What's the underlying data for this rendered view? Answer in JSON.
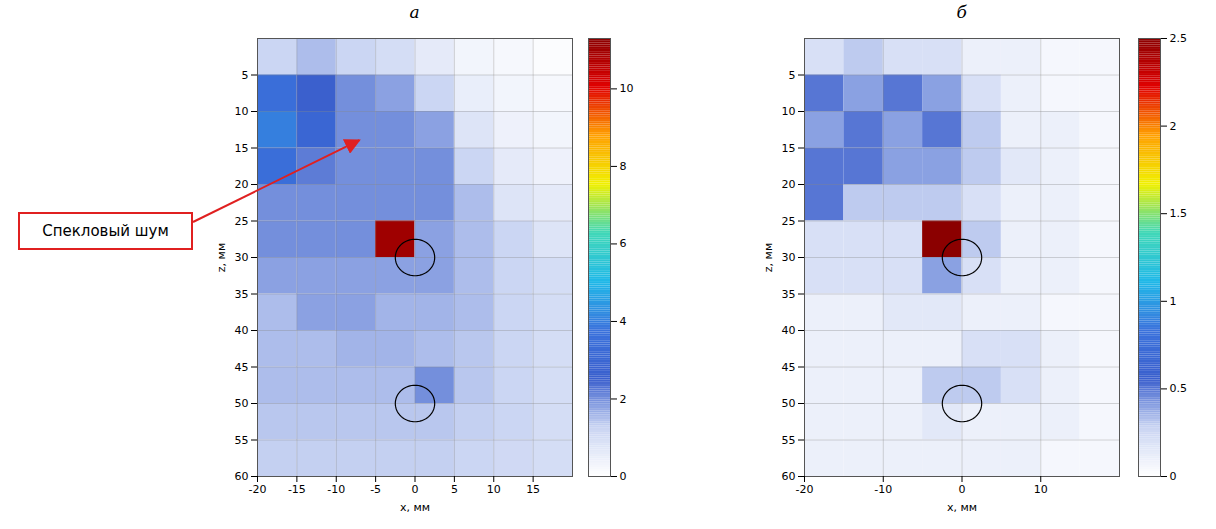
{
  "chart_data": [
    {
      "type": "heatmap",
      "title": "а",
      "xlabel": "x, мм",
      "ylabel": "z, мм",
      "xlim": [
        -20,
        20
      ],
      "ylim": [
        60,
        0
      ],
      "xticks": [
        -20,
        -15,
        -10,
        -5,
        0,
        5,
        10,
        15
      ],
      "yticks": [
        5,
        10,
        15,
        20,
        25,
        30,
        35,
        40,
        45,
        50,
        55,
        60
      ],
      "grid": true,
      "x_bins": [
        -20,
        -15,
        -10,
        -5,
        0,
        5,
        10,
        15,
        20
      ],
      "z_bins": [
        0,
        5,
        10,
        15,
        20,
        25,
        30,
        35,
        40,
        45,
        50,
        55,
        60
      ],
      "values": [
        [
          1.2,
          1.5,
          1.2,
          1.0,
          0.6,
          0.3,
          0.2,
          0.1
        ],
        [
          3.5,
          2.5,
          2.0,
          1.8,
          1.2,
          0.5,
          0.3,
          0.2
        ],
        [
          4.0,
          3.0,
          2.0,
          2.0,
          1.8,
          0.8,
          0.4,
          0.3
        ],
        [
          3.5,
          2.2,
          2.0,
          2.0,
          2.0,
          1.2,
          0.6,
          0.4
        ],
        [
          2.0,
          2.0,
          2.0,
          2.0,
          2.0,
          1.5,
          0.8,
          0.6
        ],
        [
          2.0,
          2.0,
          2.0,
          11.0,
          1.8,
          1.5,
          1.2,
          0.8
        ],
        [
          1.8,
          1.8,
          1.8,
          1.8,
          1.8,
          1.5,
          1.2,
          1.0
        ],
        [
          1.5,
          1.8,
          1.8,
          1.6,
          1.6,
          1.5,
          1.2,
          1.0
        ],
        [
          1.5,
          1.5,
          1.6,
          1.6,
          1.5,
          1.4,
          1.2,
          1.0
        ],
        [
          1.5,
          1.5,
          1.5,
          1.5,
          2.0,
          1.4,
          1.2,
          1.0
        ],
        [
          1.4,
          1.4,
          1.4,
          1.4,
          1.4,
          1.3,
          1.2,
          1.0
        ],
        [
          1.3,
          1.3,
          1.3,
          1.3,
          1.3,
          1.2,
          1.1,
          1.0
        ]
      ],
      "colorbar": {
        "range": [
          0,
          11.3
        ],
        "ticks": [
          0,
          2,
          4,
          6,
          8,
          10
        ]
      },
      "circles": [
        {
          "x": 0,
          "z": 30,
          "r": 2.5
        },
        {
          "x": 0,
          "z": 50,
          "r": 2.5
        }
      ],
      "annotations": [
        {
          "text": "Спекловый шум",
          "x": -7,
          "z": 14
        }
      ]
    },
    {
      "type": "heatmap",
      "title": "б",
      "xlabel": "x, мм",
      "ylabel": "z, мм",
      "xlim": [
        -20,
        20
      ],
      "ylim": [
        60,
        0
      ],
      "xticks": [
        -20,
        -10,
        0,
        10
      ],
      "yticks": [
        5,
        10,
        15,
        20,
        25,
        30,
        35,
        40,
        45,
        50,
        55,
        60
      ],
      "grid": true,
      "x_bins": [
        -20,
        -15,
        -10,
        -5,
        0,
        5,
        10,
        15,
        20
      ],
      "z_bins": [
        0,
        5,
        10,
        15,
        20,
        25,
        30,
        35,
        40,
        45,
        50,
        55,
        60
      ],
      "values": [
        [
          0.2,
          0.3,
          0.2,
          0.2,
          0.1,
          0.1,
          0.05,
          0.05
        ],
        [
          0.5,
          0.4,
          0.5,
          0.4,
          0.2,
          0.1,
          0.05,
          0.05
        ],
        [
          0.4,
          0.5,
          0.4,
          0.5,
          0.3,
          0.1,
          0.1,
          0.05
        ],
        [
          0.5,
          0.5,
          0.4,
          0.4,
          0.3,
          0.15,
          0.1,
          0.05
        ],
        [
          0.5,
          0.3,
          0.3,
          0.3,
          0.2,
          0.1,
          0.1,
          0.05
        ],
        [
          0.2,
          0.2,
          0.2,
          2.5,
          0.3,
          0.1,
          0.1,
          0.05
        ],
        [
          0.2,
          0.2,
          0.2,
          0.4,
          0.2,
          0.1,
          0.1,
          0.05
        ],
        [
          0.1,
          0.1,
          0.15,
          0.15,
          0.1,
          0.1,
          0.05,
          0.05
        ],
        [
          0.1,
          0.1,
          0.1,
          0.1,
          0.2,
          0.2,
          0.1,
          0.05
        ],
        [
          0.1,
          0.1,
          0.1,
          0.3,
          0.3,
          0.2,
          0.1,
          0.05
        ],
        [
          0.1,
          0.1,
          0.1,
          0.15,
          0.1,
          0.1,
          0.1,
          0.05
        ],
        [
          0.1,
          0.1,
          0.1,
          0.1,
          0.1,
          0.1,
          0.05,
          0.05
        ]
      ],
      "colorbar": {
        "range": [
          0,
          2.5
        ],
        "ticks": [
          0,
          0.5,
          1,
          1.5,
          2,
          2.5
        ]
      },
      "circles": [
        {
          "x": 0,
          "z": 30,
          "r": 2.5
        },
        {
          "x": 0,
          "z": 50,
          "r": 2.5
        }
      ]
    }
  ]
}
